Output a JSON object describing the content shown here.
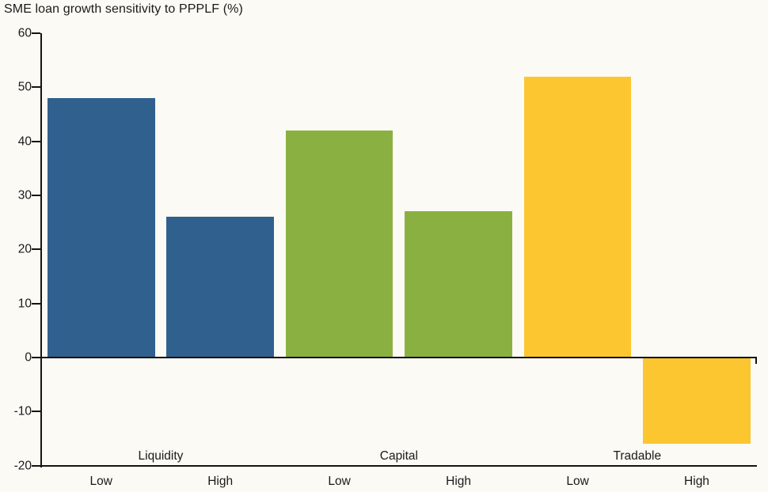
{
  "title": "SME loan growth sensitivity to PPPLF (%)",
  "colors": {
    "background": "#FBFAF4",
    "axis": "#141414",
    "text": "#1A1A1A",
    "blue": "#30618E",
    "green": "#8BB042",
    "yellow": "#FBC630"
  },
  "chart_data": {
    "type": "bar",
    "title": "SME loan growth sensitivity to PPPLF (%)",
    "categories": [
      "Low",
      "High",
      "Low",
      "High",
      "Low",
      "High"
    ],
    "values": [
      48,
      26,
      42,
      27,
      52,
      -16
    ],
    "groups": [
      {
        "label": "Liquidity",
        "color": "#30618E",
        "bars": [
          0,
          1
        ]
      },
      {
        "label": "Capital",
        "color": "#8BB042",
        "bars": [
          2,
          3
        ]
      },
      {
        "label": "Tradable",
        "color": "#FBC630",
        "bars": [
          4,
          5
        ]
      }
    ],
    "series": [
      {
        "name": "SME loan growth sensitivity to PPPLF",
        "values": [
          48,
          26,
          42,
          27,
          52,
          -16
        ]
      }
    ],
    "ylim": [
      -20,
      60
    ],
    "ytick_step": 10,
    "yticks": [
      60,
      50,
      40,
      30,
      20,
      10,
      0,
      -10,
      -20
    ],
    "xlabel": "",
    "ylabel": "",
    "grid": false,
    "legend": false
  }
}
